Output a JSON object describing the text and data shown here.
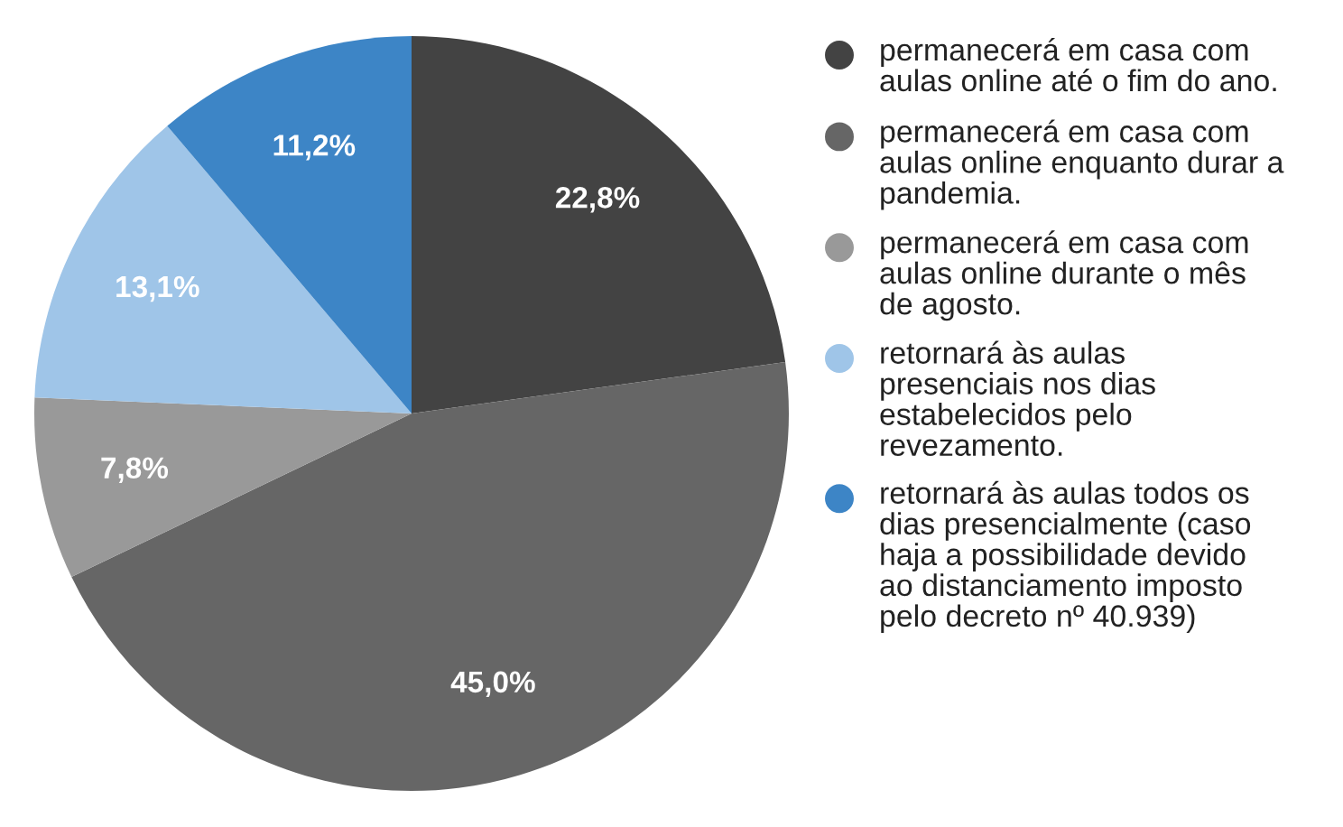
{
  "chart_data": {
    "type": "pie",
    "categories": [
      "permanecerá em casa com\naulas online até o fim do ano.",
      "permanecerá em casa com\naulas online enquanto durar a\npandemia.",
      "permanecerá em casa com\naulas online durante o mês\nde agosto.",
      "retornará às aulas\npresenciais nos dias\nestabelecidos pelo\nrevezamento.",
      "retornará às aulas todos os\ndias presencialmente (caso\nhaja a possibilidade devido\nao distanciamento imposto\npelo decreto nº 40.939)"
    ],
    "values": [
      22.8,
      45.0,
      7.8,
      13.1,
      11.2
    ],
    "colors": [
      "#434343",
      "#666666",
      "#999999",
      "#9fc5e8",
      "#3d85c6"
    ],
    "value_labels": [
      "22,8%",
      "45,0%",
      "7,8%",
      "13,1%",
      "11,2%"
    ],
    "legend": "right"
  }
}
